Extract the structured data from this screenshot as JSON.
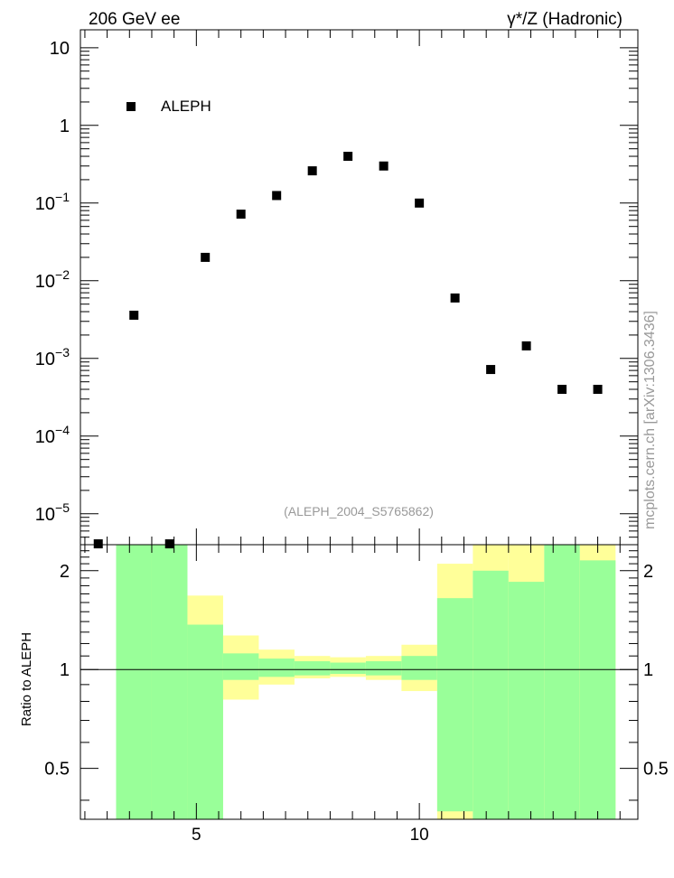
{
  "header": {
    "left": "206 GeV ee",
    "right": "γ*/Z (Hadronic)"
  },
  "side_label": "mcplots.cern.ch [arXiv:1306.3436]",
  "analysis_tag": "(ALEPH_2004_S5765862)",
  "chart_data": [
    {
      "type": "scatter",
      "yscale": "log",
      "xlim": [
        2.4,
        14.9
      ],
      "ylim": [
        4e-06,
        17
      ],
      "ylabel": "",
      "yticks": [
        {
          "value": 10,
          "base": "10",
          "exp": ""
        },
        {
          "value": 1,
          "base": "1",
          "exp": ""
        },
        {
          "value": 0.1,
          "base": "10",
          "exp": "−1"
        },
        {
          "value": 0.01,
          "base": "10",
          "exp": "−2"
        },
        {
          "value": 0.001,
          "base": "10",
          "exp": "−3"
        },
        {
          "value": 0.0001,
          "base": "10",
          "exp": "−4"
        },
        {
          "value": 1e-05,
          "base": "10",
          "exp": "−5"
        }
      ],
      "legend": {
        "position": "top-left"
      },
      "series": [
        {
          "name": "ALEPH",
          "color": "#000000",
          "points": [
            {
              "x": 2.8,
              "y": 4.1e-06
            },
            {
              "x": 3.6,
              "y": 0.0036
            },
            {
              "x": 4.4,
              "y": 4.1e-06
            },
            {
              "x": 5.2,
              "y": 0.02
            },
            {
              "x": 6.0,
              "y": 0.072
            },
            {
              "x": 6.8,
              "y": 0.125
            },
            {
              "x": 7.6,
              "y": 0.26
            },
            {
              "x": 8.4,
              "y": 0.4
            },
            {
              "x": 9.2,
              "y": 0.3
            },
            {
              "x": 10.0,
              "y": 0.1
            },
            {
              "x": 10.8,
              "y": 0.006
            },
            {
              "x": 11.6,
              "y": 0.00072
            },
            {
              "x": 12.4,
              "y": 0.00145
            },
            {
              "x": 13.2,
              "y": 0.0004
            },
            {
              "x": 14.0,
              "y": 0.0004
            }
          ]
        }
      ]
    },
    {
      "type": "area",
      "yscale": "log",
      "xlim": [
        2.4,
        14.9
      ],
      "ylim": [
        0.35,
        2.4
      ],
      "ylabel": "Ratio to ALEPH",
      "xticks": [
        5,
        10
      ],
      "yticks": [
        0.5,
        1,
        2
      ],
      "reference_line": 1,
      "colors": {
        "outer": "#ffff99",
        "inner": "#99ff99"
      },
      "bins": [
        {
          "lo": 3.2,
          "hi": 4.0,
          "outer_lo": 0.35,
          "outer_hi": 2.4,
          "inner_lo": 0.35,
          "inner_hi": 2.4
        },
        {
          "lo": 4.0,
          "hi": 4.8,
          "outer_lo": 0.35,
          "outer_hi": 2.4,
          "inner_lo": 0.35,
          "inner_hi": 2.4
        },
        {
          "lo": 4.8,
          "hi": 5.6,
          "outer_lo": 0.35,
          "outer_hi": 1.68,
          "inner_lo": 0.35,
          "inner_hi": 1.37
        },
        {
          "lo": 5.6,
          "hi": 6.4,
          "outer_lo": 0.81,
          "outer_hi": 1.27,
          "inner_lo": 0.93,
          "inner_hi": 1.12
        },
        {
          "lo": 6.4,
          "hi": 7.2,
          "outer_lo": 0.9,
          "outer_hi": 1.15,
          "inner_lo": 0.95,
          "inner_hi": 1.08
        },
        {
          "lo": 7.2,
          "hi": 8.0,
          "outer_lo": 0.94,
          "outer_hi": 1.1,
          "inner_lo": 0.96,
          "inner_hi": 1.06
        },
        {
          "lo": 8.0,
          "hi": 8.8,
          "outer_lo": 0.95,
          "outer_hi": 1.09,
          "inner_lo": 0.97,
          "inner_hi": 1.05
        },
        {
          "lo": 8.8,
          "hi": 9.6,
          "outer_lo": 0.93,
          "outer_hi": 1.1,
          "inner_lo": 0.96,
          "inner_hi": 1.06
        },
        {
          "lo": 9.6,
          "hi": 10.4,
          "outer_lo": 0.86,
          "outer_hi": 1.19,
          "inner_lo": 0.93,
          "inner_hi": 1.1
        },
        {
          "lo": 10.4,
          "hi": 11.2,
          "outer_lo": 0.35,
          "outer_hi": 2.1,
          "inner_lo": 0.37,
          "inner_hi": 1.65
        },
        {
          "lo": 11.2,
          "hi": 12.0,
          "outer_lo": 0.35,
          "outer_hi": 2.4,
          "inner_lo": 0.35,
          "inner_hi": 2.0
        },
        {
          "lo": 12.0,
          "hi": 12.8,
          "outer_lo": 0.35,
          "outer_hi": 2.4,
          "inner_lo": 0.35,
          "inner_hi": 1.85
        },
        {
          "lo": 12.8,
          "hi": 13.6,
          "outer_lo": 0.35,
          "outer_hi": 2.4,
          "inner_lo": 0.35,
          "inner_hi": 2.4
        },
        {
          "lo": 13.6,
          "hi": 14.4,
          "outer_lo": 0.35,
          "outer_hi": 2.4,
          "inner_lo": 0.35,
          "inner_hi": 2.15
        }
      ]
    }
  ]
}
